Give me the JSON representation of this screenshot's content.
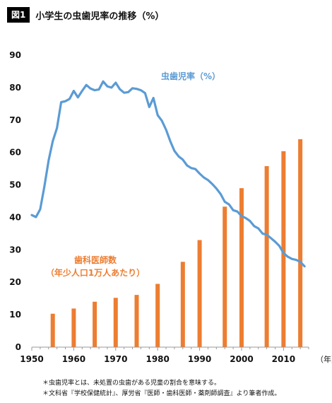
{
  "figure": {
    "badge": "図1",
    "title": "小学生の虫歯児率の推移（%）"
  },
  "notes": [
    "＊虫歯児率とは、未処置の虫歯がある児童の割合を意味する。",
    "＊文科省『学校保健統計』、厚労省『医師・歯科医師・薬剤師調査』より筆者作成。"
  ],
  "colors": {
    "line": "#5b9bd5",
    "bar": "#ed7d31",
    "axis": "#999999",
    "grid": "#e6e6e6"
  },
  "chart_data": {
    "type": "line",
    "title": "小学生の虫歯児率の推移（%）",
    "xlim": [
      1950,
      2016
    ],
    "ylim": [
      0,
      90
    ],
    "yticks": [
      0,
      10,
      20,
      30,
      40,
      50,
      60,
      70,
      80,
      90
    ],
    "xticks": [
      1950,
      1960,
      1970,
      1980,
      1990,
      2000,
      2010
    ],
    "x_unit": "（年）",
    "grid": false,
    "series": [
      {
        "name": "虫歯児率（%）",
        "kind": "line",
        "color": "#5b9bd5",
        "x": [
          1950,
          1951,
          1952,
          1953,
          1954,
          1955,
          1956,
          1957,
          1958,
          1959,
          1960,
          1961,
          1962,
          1963,
          1964,
          1965,
          1966,
          1967,
          1968,
          1969,
          1970,
          1971,
          1972,
          1973,
          1974,
          1975,
          1976,
          1977,
          1978,
          1979,
          1980,
          1981,
          1982,
          1983,
          1984,
          1985,
          1986,
          1987,
          1988,
          1989,
          1990,
          1991,
          1992,
          1993,
          1994,
          1995,
          1996,
          1997,
          1998,
          1999,
          2000,
          2001,
          2002,
          2003,
          2004,
          2005,
          2006,
          2007,
          2008,
          2009,
          2010,
          2011,
          2012,
          2013,
          2014,
          2015
        ],
        "y": [
          40.7,
          40.1,
          42.5,
          49.5,
          57.5,
          63.5,
          67.5,
          75.5,
          75.8,
          76.5,
          79.0,
          77.0,
          79.0,
          80.8,
          79.7,
          79.2,
          79.4,
          81.9,
          80.4,
          80.0,
          81.5,
          79.5,
          78.4,
          78.6,
          79.8,
          79.6,
          79.2,
          78.3,
          74.0,
          76.8,
          71.5,
          69.8,
          67.0,
          63.5,
          60.5,
          58.8,
          57.8,
          56.0,
          55.2,
          54.9,
          53.5,
          52.3,
          51.5,
          50.3,
          48.9,
          47.2,
          44.8,
          44.0,
          42.2,
          41.8,
          40.4,
          39.8,
          38.9,
          37.3,
          36.6,
          35.0,
          34.7,
          33.6,
          32.5,
          31.2,
          29.0,
          27.9,
          27.2,
          26.9,
          26.3,
          24.9
        ]
      },
      {
        "name": "歯科医師数（年少人口1万人あたり）",
        "kind": "bar",
        "color": "#ed7d31",
        "x": [
          1955,
          1960,
          1965,
          1970,
          1975,
          1980,
          1986,
          1990,
          1996,
          2000,
          2006,
          2010,
          2014
        ],
        "y": [
          10.3,
          11.9,
          14.0,
          15.2,
          16.1,
          19.5,
          26.3,
          33.0,
          43.3,
          49.0,
          55.8,
          60.4,
          64.1
        ]
      }
    ]
  }
}
